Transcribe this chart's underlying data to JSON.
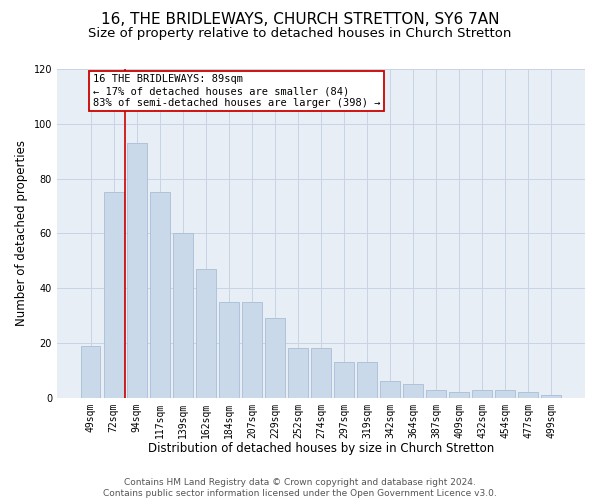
{
  "title": "16, THE BRIDLEWAYS, CHURCH STRETTON, SY6 7AN",
  "subtitle": "Size of property relative to detached houses in Church Stretton",
  "xlabel": "Distribution of detached houses by size in Church Stretton",
  "ylabel": "Number of detached properties",
  "categories": [
    "49sqm",
    "72sqm",
    "94sqm",
    "117sqm",
    "139sqm",
    "162sqm",
    "184sqm",
    "207sqm",
    "229sqm",
    "252sqm",
    "274sqm",
    "297sqm",
    "319sqm",
    "342sqm",
    "364sqm",
    "387sqm",
    "409sqm",
    "432sqm",
    "454sqm",
    "477sqm",
    "499sqm"
  ],
  "values": [
    19,
    75,
    93,
    75,
    60,
    47,
    35,
    35,
    29,
    18,
    18,
    13,
    13,
    6,
    5,
    3,
    2,
    3,
    3,
    2,
    1
  ],
  "bar_color": "#c9d9ea",
  "bar_edge_color": "#aabdd4",
  "bar_width": 0.85,
  "ylim": [
    0,
    120
  ],
  "yticks": [
    0,
    20,
    40,
    60,
    80,
    100,
    120
  ],
  "vline_color": "#cc0000",
  "vline_x_index": 1.5,
  "annotation_text": "16 THE BRIDLEWAYS: 89sqm\n← 17% of detached houses are smaller (84)\n83% of semi-detached houses are larger (398) →",
  "annotation_box_color": "#ffffff",
  "annotation_box_edge": "#cc0000",
  "grid_color": "#c8d4e4",
  "background_color": "#e8eef6",
  "footer_line1": "Contains HM Land Registry data © Crown copyright and database right 2024.",
  "footer_line2": "Contains public sector information licensed under the Open Government Licence v3.0.",
  "title_fontsize": 11,
  "subtitle_fontsize": 9.5,
  "xlabel_fontsize": 8.5,
  "ylabel_fontsize": 8.5,
  "tick_fontsize": 7,
  "annotation_fontsize": 7.5,
  "footer_fontsize": 6.5
}
